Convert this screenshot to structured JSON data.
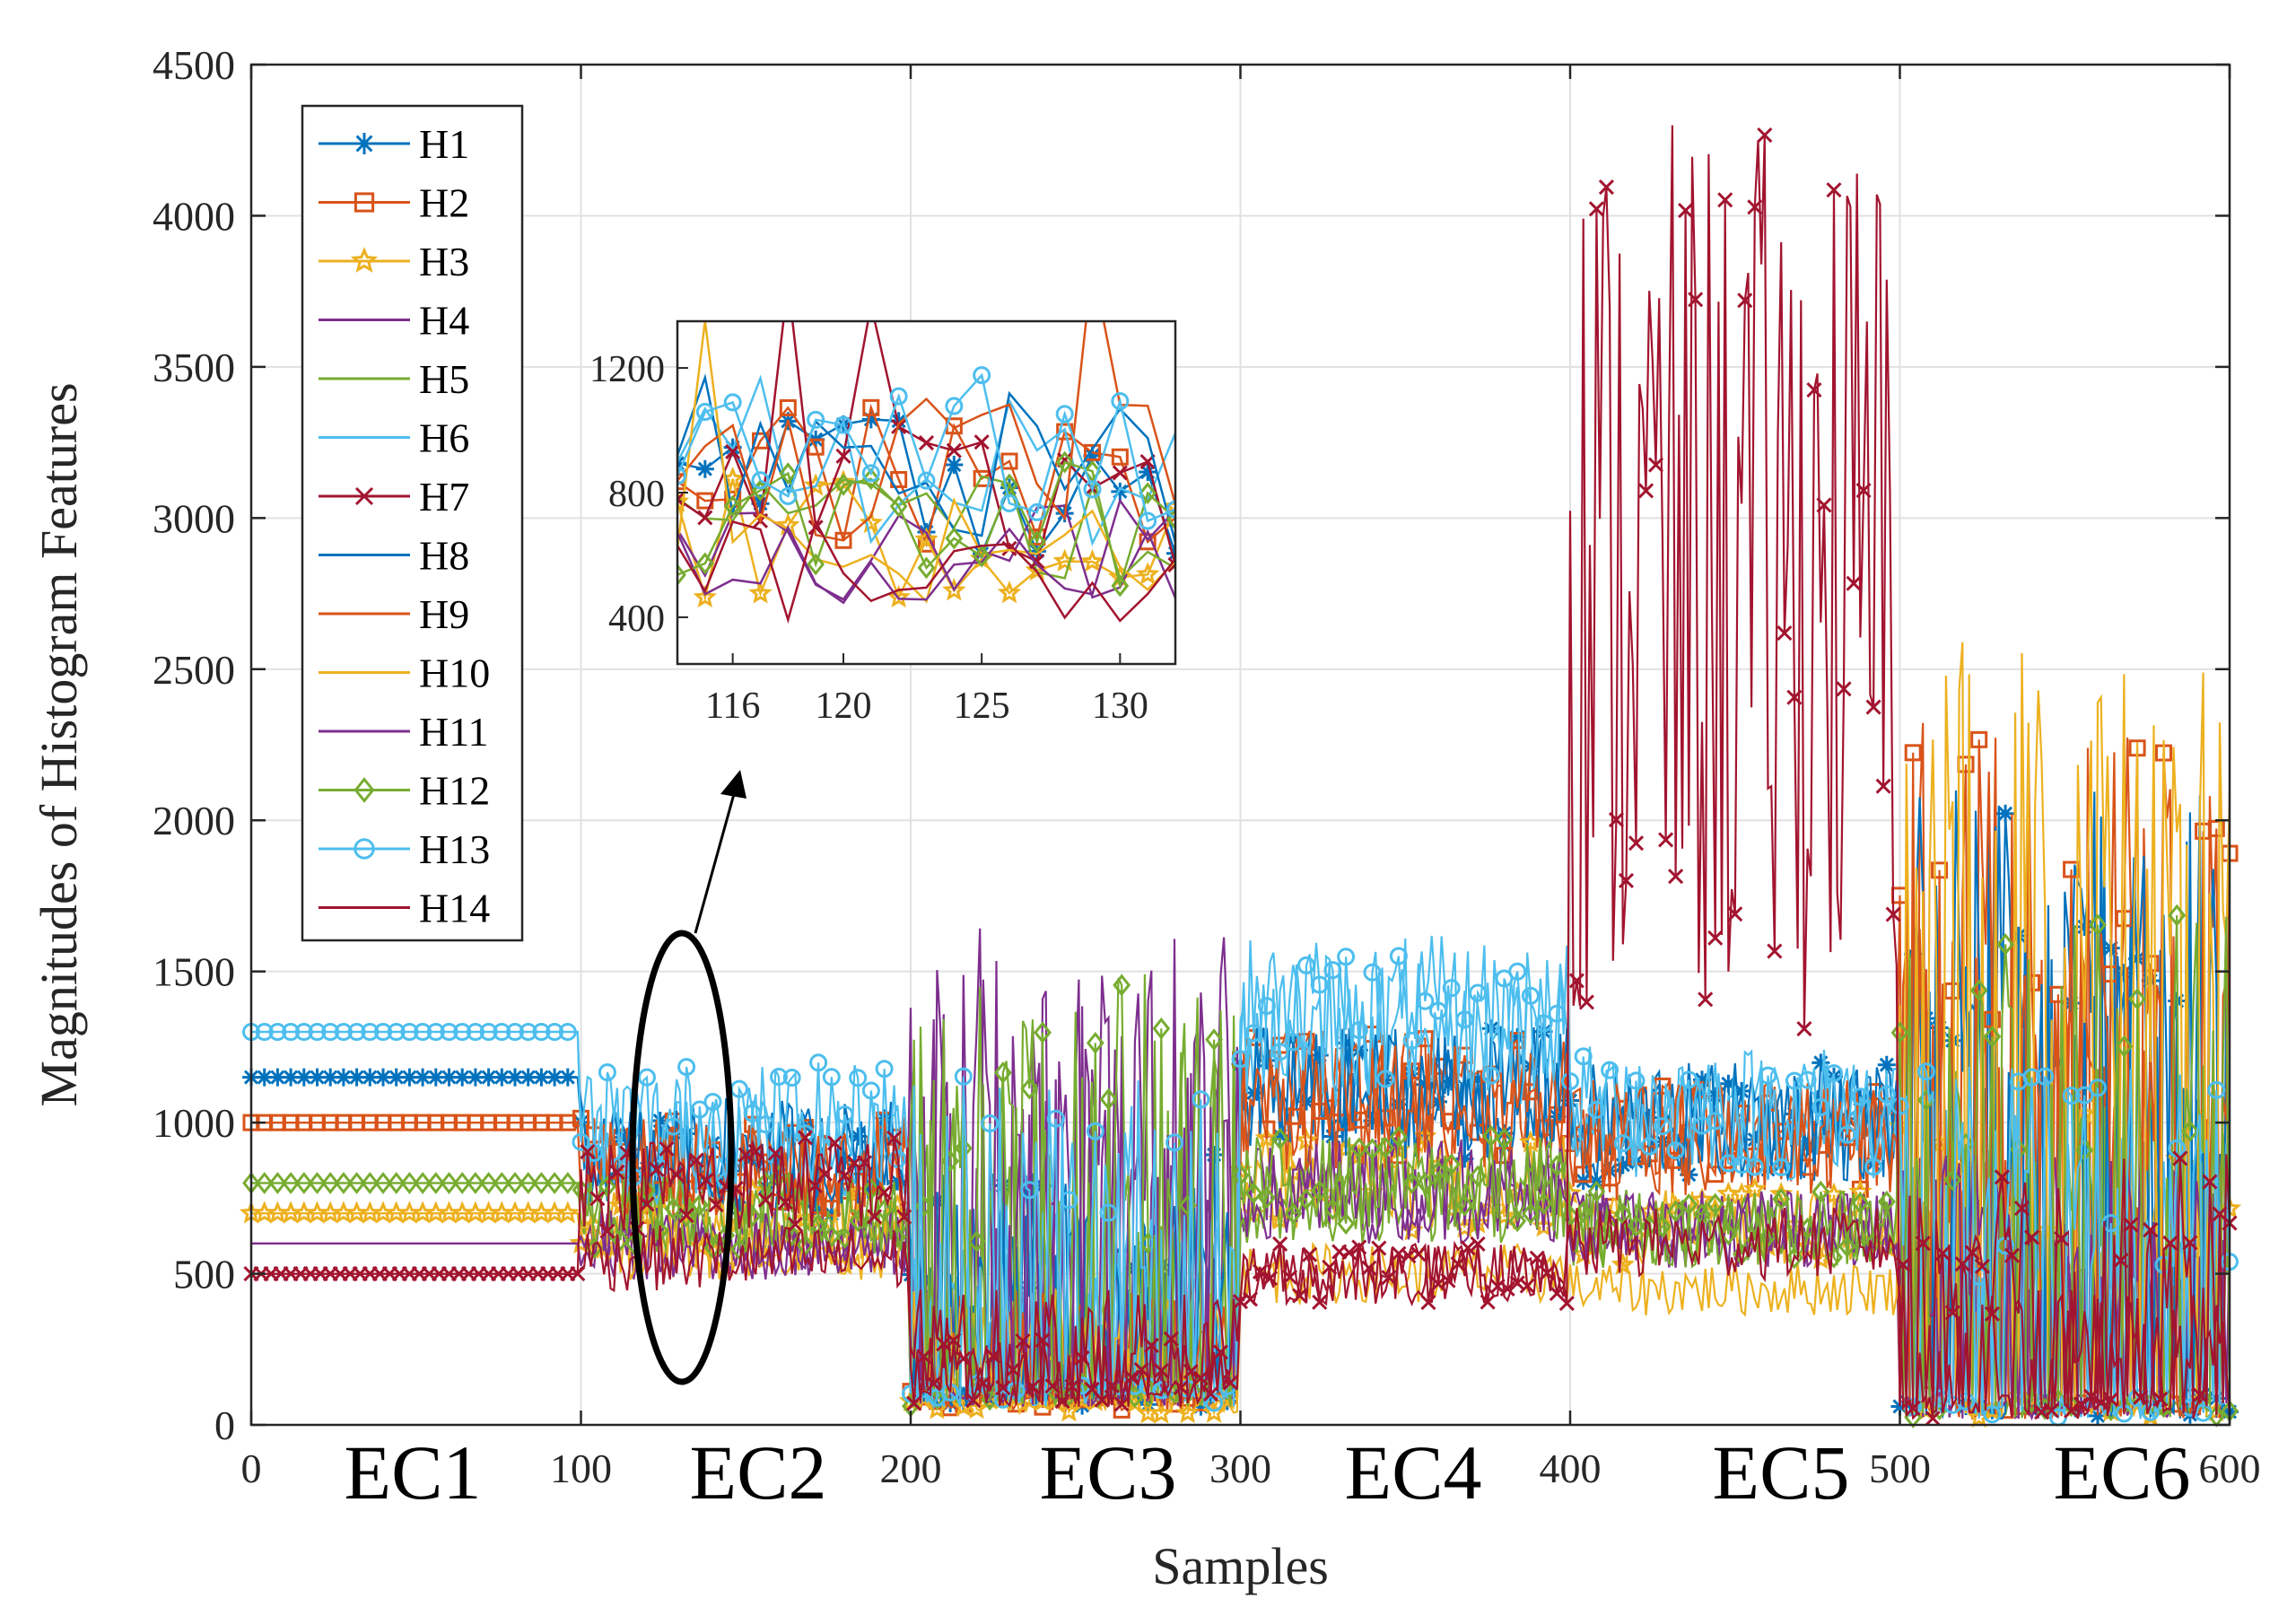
{
  "chart_data": {
    "type": "line",
    "title": "",
    "xlabel": "Samples",
    "ylabel": "Magnitudes of Histogram Features",
    "xlim": [
      0,
      600
    ],
    "ylim": [
      0,
      4500
    ],
    "xticks": [
      "0",
      "100",
      "200",
      "300",
      "400",
      "500",
      "600"
    ],
    "yticks": [
      "0",
      "500",
      "1000",
      "1500",
      "2000",
      "2500",
      "3000",
      "3500",
      "4000",
      "4500"
    ],
    "grid": true,
    "legend_position": "top-left",
    "regions": [
      {
        "label": "EC1",
        "x_range": [
          0,
          100
        ]
      },
      {
        "label": "EC2",
        "x_range": [
          100,
          200
        ]
      },
      {
        "label": "EC3",
        "x_range": [
          200,
          300
        ]
      },
      {
        "label": "EC4",
        "x_range": [
          300,
          400
        ]
      },
      {
        "label": "EC5",
        "x_range": [
          400,
          500
        ]
      },
      {
        "label": "EC6",
        "x_range": [
          500,
          600
        ]
      }
    ],
    "series": [
      {
        "name": "H1",
        "color": "#0072BD",
        "marker": "asterisk",
        "region_levels": [
          1150,
          850,
          600,
          1100,
          1000,
          1400
        ]
      },
      {
        "name": "H2",
        "color": "#D95319",
        "marker": "square",
        "region_levels": [
          1000,
          850,
          80,
          1100,
          950,
          1550
        ]
      },
      {
        "name": "H3",
        "color": "#EDB120",
        "marker": "star",
        "region_levels": [
          700,
          650,
          60,
          800,
          650,
          700
        ]
      },
      {
        "name": "H4",
        "color": "#7E2F8E",
        "marker": "none",
        "region_levels": [
          600,
          600,
          1000,
          800,
          650,
          600
        ]
      },
      {
        "name": "H5",
        "color": "#77AC30",
        "marker": "none",
        "region_levels": [
          800,
          700,
          900,
          750,
          650,
          800
        ]
      },
      {
        "name": "H6",
        "color": "#4DBEEE",
        "marker": "none",
        "region_levels": [
          1300,
          900,
          500,
          1300,
          1000,
          700
        ]
      },
      {
        "name": "H7",
        "color": "#A2142F",
        "marker": "x",
        "region_levels": [
          500,
          800,
          200,
          500,
          2800,
          600
        ]
      },
      {
        "name": "H8",
        "color": "#0072BD",
        "marker": "none",
        "region_levels": [
          1150,
          900,
          500,
          1100,
          1000,
          1400
        ]
      },
      {
        "name": "H9",
        "color": "#D95319",
        "marker": "none",
        "region_levels": [
          1000,
          850,
          300,
          1050,
          950,
          1100
        ]
      },
      {
        "name": "H10",
        "color": "#EDB120",
        "marker": "none",
        "region_levels": [
          700,
          600,
          300,
          500,
          450,
          1800
        ]
      },
      {
        "name": "H11",
        "color": "#7E2F8E",
        "marker": "none",
        "region_levels": [
          600,
          600,
          1100,
          750,
          650,
          600
        ]
      },
      {
        "name": "H12",
        "color": "#77AC30",
        "marker": "diamond",
        "region_levels": [
          800,
          700,
          1000,
          800,
          650,
          1150
        ]
      },
      {
        "name": "H13",
        "color": "#4DBEEE",
        "marker": "circle",
        "region_levels": [
          1300,
          1000,
          800,
          1350,
          1050,
          800
        ]
      },
      {
        "name": "H14",
        "color": "#A2142F",
        "marker": "none",
        "region_levels": [
          500,
          550,
          300,
          500,
          600,
          300
        ]
      }
    ],
    "inset": {
      "xlim": [
        114,
        132
      ],
      "ylim": [
        250,
        1350
      ],
      "xticks": [
        "116",
        "120",
        "125",
        "130"
      ],
      "yticks": [
        "400",
        "800",
        "1200"
      ]
    }
  }
}
